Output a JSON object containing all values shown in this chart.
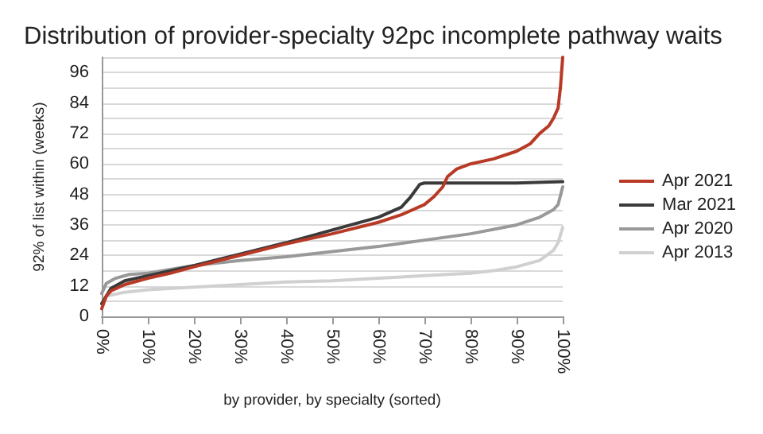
{
  "chart_data": {
    "type": "line",
    "title": "Distribution of provider-specialty 92pc incomplete pathway waits",
    "xlabel": "by provider, by specialty (sorted)",
    "ylabel": "92% of list within (weeks)",
    "xlim": [
      0,
      100
    ],
    "xticks": [
      {
        "value": 0,
        "label": "0%"
      },
      {
        "value": 10,
        "label": "10%"
      },
      {
        "value": 20,
        "label": "20%"
      },
      {
        "value": 30,
        "label": "30%"
      },
      {
        "value": 40,
        "label": "40%"
      },
      {
        "value": 50,
        "label": "50%"
      },
      {
        "value": 60,
        "label": "60%"
      },
      {
        "value": 70,
        "label": "70%"
      },
      {
        "value": 80,
        "label": "80%"
      },
      {
        "value": 90,
        "label": "90%"
      },
      {
        "value": 100,
        "label": "100%"
      }
    ],
    "ylim": [
      0,
      102
    ],
    "yticks": [
      0,
      {
        "value": 6,
        "label": null
      },
      12,
      {
        "value": 18,
        "label": null
      },
      24,
      {
        "value": 30,
        "label": null
      },
      36,
      {
        "value": 42,
        "label": null
      },
      48,
      {
        "value": 54,
        "label": null
      },
      60,
      {
        "value": 66,
        "label": null
      },
      72,
      {
        "value": 78,
        "label": null
      },
      84,
      {
        "value": 90,
        "label": null
      },
      96,
      {
        "value": 102,
        "label": null
      }
    ],
    "grid": "y",
    "legend": "right",
    "marker": "none",
    "line_style": "solid",
    "series": [
      {
        "name": "Apr 2021",
        "color": "#b83a26",
        "x": [
          0,
          1,
          2,
          5,
          10,
          15,
          20,
          30,
          40,
          50,
          60,
          65,
          70,
          72,
          74,
          75,
          77,
          80,
          85,
          90,
          93,
          95,
          97,
          98,
          99,
          99.5,
          100
        ],
        "values": [
          3,
          8,
          10,
          12.5,
          15,
          17,
          19.5,
          24,
          28.5,
          32.5,
          37,
          40,
          44,
          47,
          51,
          55,
          58,
          60,
          62,
          65,
          68,
          72,
          75,
          78,
          82,
          90,
          102
        ]
      },
      {
        "name": "Mar 2021",
        "color": "#3a3a3a",
        "x": [
          0,
          2,
          5,
          10,
          20,
          30,
          40,
          50,
          60,
          65,
          67,
          69,
          70,
          80,
          90,
          100
        ],
        "values": [
          5,
          11,
          14,
          16,
          20,
          24.5,
          29,
          34,
          39,
          43,
          47,
          52,
          52.5,
          52.5,
          52.5,
          53
        ]
      },
      {
        "name": "Apr 2020",
        "color": "#999999",
        "x": [
          0,
          1,
          3,
          6,
          10,
          20,
          30,
          40,
          50,
          60,
          70,
          80,
          90,
          95,
          98,
          99,
          100
        ],
        "values": [
          9,
          13,
          15,
          16.5,
          17,
          20,
          22,
          23.5,
          25.5,
          27.5,
          30,
          32.5,
          36,
          39,
          42,
          44,
          51
        ]
      },
      {
        "name": "Apr 2013",
        "color": "#d0d0d0",
        "x": [
          0,
          1,
          5,
          10,
          20,
          30,
          40,
          50,
          60,
          70,
          80,
          85,
          90,
          95,
          98,
          99,
          100
        ],
        "values": [
          5,
          8,
          9.5,
          10.5,
          11.5,
          12.5,
          13.5,
          14,
          15,
          16,
          17,
          18,
          19.5,
          22,
          26,
          29,
          35
        ]
      }
    ]
  }
}
